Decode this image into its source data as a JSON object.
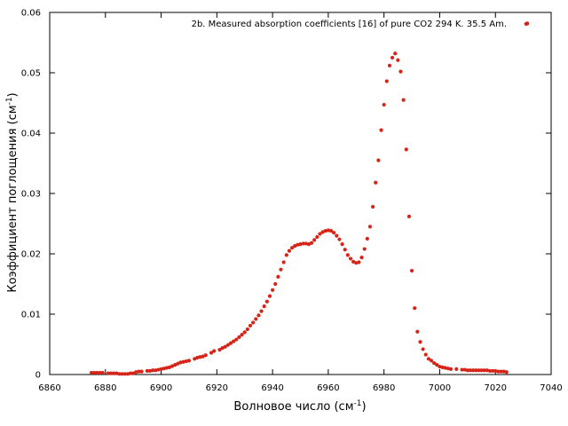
{
  "chart_data": {
    "type": "scatter",
    "xlabel": "Волновое число (см",
    "xlabel_sup": "-1",
    "xlabel_end": ")",
    "ylabel": "Коэффициент поглощения (см",
    "ylabel_sup": "-1",
    "ylabel_end": ")",
    "xlim": [
      6860,
      7040
    ],
    "ylim": [
      0,
      0.06
    ],
    "x_ticks": [
      "6860",
      "6880",
      "6900",
      "6920",
      "6940",
      "6960",
      "6980",
      "7000",
      "7020",
      "7040"
    ],
    "y_ticks": [
      "0",
      "0.01",
      "0.02",
      "0.03",
      "0.04",
      "0.05",
      "0.06"
    ],
    "grid": false,
    "legend_position": "top-right",
    "series": [
      {
        "name": "2b. Measured absorption coefficients [16] of pure CO2  294 K. 35.5 Am.",
        "color": "#d62418",
        "x": [
          6875,
          6876,
          6877,
          6878,
          6879,
          6881,
          6882,
          6883,
          6884,
          6885,
          6886,
          6887,
          6888,
          6889,
          6890,
          6891,
          6892,
          6893,
          6895,
          6896,
          6897,
          6898,
          6899,
          6900,
          6901,
          6902,
          6903,
          6904,
          6905,
          6906,
          6907,
          6908,
          6909,
          6910,
          6912,
          6913,
          6914,
          6915,
          6916,
          6918,
          6919,
          6921,
          6922,
          6923,
          6924,
          6925,
          6926,
          6927,
          6928,
          6929,
          6930,
          6931,
          6932,
          6933,
          6934,
          6935,
          6936,
          6937,
          6938,
          6939,
          6940,
          6941,
          6942,
          6943,
          6944,
          6945,
          6946,
          6947,
          6948,
          6949,
          6950,
          6951,
          6952,
          6953,
          6954,
          6955,
          6956,
          6957,
          6958,
          6959,
          6960,
          6961,
          6962,
          6963,
          6964,
          6965,
          6966,
          6967,
          6968,
          6969,
          6970,
          6971,
          6972,
          6973,
          6974,
          6975,
          6976,
          6977,
          6978,
          6979,
          6980,
          6981,
          6982,
          6983,
          6984,
          6985,
          6986,
          6987,
          6988,
          6989,
          6990,
          6991,
          6992,
          6993,
          6994,
          6995,
          6996,
          6997,
          6998,
          6999,
          7000,
          7001,
          7002,
          7003,
          7004,
          7006,
          7008,
          7009,
          7010,
          7011,
          7012,
          7013,
          7014,
          7015,
          7016,
          7017,
          7018,
          7019,
          7020,
          7021,
          7022,
          7023,
          7024,
          7031
        ],
        "y": [
          0.0003,
          0.0003,
          0.0003,
          0.0003,
          0.0003,
          0.0002,
          0.0002,
          0.0002,
          0.0002,
          0.0001,
          0.0001,
          0.0001,
          0.0001,
          0.0002,
          0.0002,
          0.0004,
          0.0005,
          0.0005,
          0.0006,
          0.0006,
          0.0007,
          0.0007,
          0.0008,
          0.0009,
          0.001,
          0.0011,
          0.0012,
          0.0014,
          0.0016,
          0.0018,
          0.002,
          0.0021,
          0.0022,
          0.0023,
          0.0026,
          0.0028,
          0.0029,
          0.003,
          0.0032,
          0.0036,
          0.0039,
          0.0041,
          0.0044,
          0.0046,
          0.0049,
          0.0052,
          0.0055,
          0.0058,
          0.0062,
          0.0066,
          0.007,
          0.0075,
          0.0081,
          0.0086,
          0.0092,
          0.0098,
          0.0105,
          0.0113,
          0.0121,
          0.013,
          0.014,
          0.015,
          0.0162,
          0.0174,
          0.0186,
          0.0198,
          0.0205,
          0.021,
          0.0213,
          0.0215,
          0.0216,
          0.0217,
          0.0217,
          0.0216,
          0.0218,
          0.0223,
          0.0228,
          0.0233,
          0.0236,
          0.0238,
          0.0239,
          0.0238,
          0.0235,
          0.023,
          0.0224,
          0.0216,
          0.0207,
          0.0198,
          0.0192,
          0.0187,
          0.0185,
          0.0186,
          0.0194,
          0.0208,
          0.0225,
          0.0245,
          0.0278,
          0.0318,
          0.0355,
          0.0405,
          0.0447,
          0.0486,
          0.0512,
          0.0525,
          0.0532,
          0.0521,
          0.0502,
          0.0455,
          0.0373,
          0.0262,
          0.0172,
          0.011,
          0.0071,
          0.0054,
          0.0042,
          0.0033,
          0.0026,
          0.0023,
          0.0019,
          0.0016,
          0.0013,
          0.0012,
          0.0011,
          0.001,
          0.0009,
          0.0009,
          0.0008,
          0.0008,
          0.0007,
          0.0007,
          0.0007,
          0.0007,
          0.0007,
          0.0007,
          0.0007,
          0.0007,
          0.0006,
          0.0006,
          0.0006,
          0.0005,
          0.0005,
          0.0005,
          0.0004,
          0.0581
        ]
      }
    ]
  }
}
